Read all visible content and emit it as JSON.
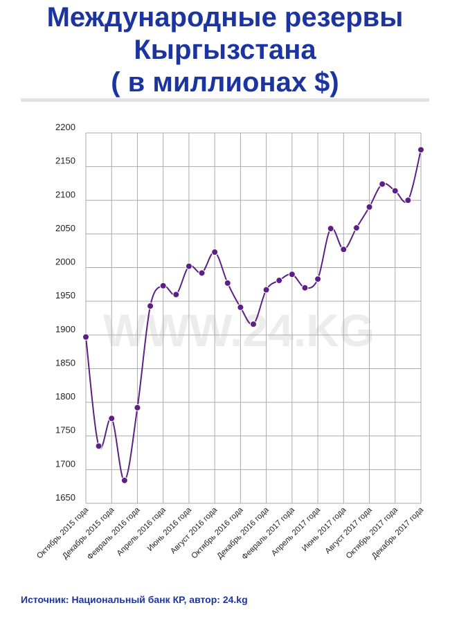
{
  "header": {
    "title_lines": [
      "Международные резервы",
      "Кыргызстана",
      "( в миллионах $)"
    ]
  },
  "watermark": "WWW.24.KG",
  "source": "Источник: Национальный банк КР, автор: 24.kg",
  "colors": {
    "title": "#1c34a0",
    "line": "#5c1f86",
    "marker": "#5c1f86",
    "grid": "#aaaaaa",
    "rule": "#e3e3e3"
  },
  "chart_data": {
    "type": "line",
    "title": "",
    "xlabel": "",
    "ylabel": "",
    "ylim": [
      1650,
      2200
    ],
    "yticks": [
      1650,
      1700,
      1750,
      1800,
      1850,
      1900,
      1950,
      2000,
      2050,
      2100,
      2150,
      2200
    ],
    "grid": true,
    "legend": "none",
    "x_tick_labels": [
      "Октябрь 2015 года",
      "Декабрь 2015 года",
      "Февраль 2016 года",
      "Апрель 2016 года",
      "Июнь 2016 года",
      "Август 2016 года",
      "Октябрь 2016 года",
      "Декабрь 2016 года",
      "Февраль 2017 года",
      "Апрель 2017 года",
      "Июнь 2017 года",
      "Август 2017 года",
      "Октябрь 2017 года",
      "Декабрь 2017 года"
    ],
    "series": [
      {
        "values": [
          1897,
          1735,
          1776,
          1684,
          1792,
          1943,
          1973,
          1960,
          2002,
          1992,
          2023,
          1977,
          1941,
          1916,
          1967,
          1981,
          1990,
          1970,
          1983,
          2058,
          2027,
          2059,
          2090,
          2124,
          2114,
          2100,
          2175
        ]
      }
    ]
  }
}
